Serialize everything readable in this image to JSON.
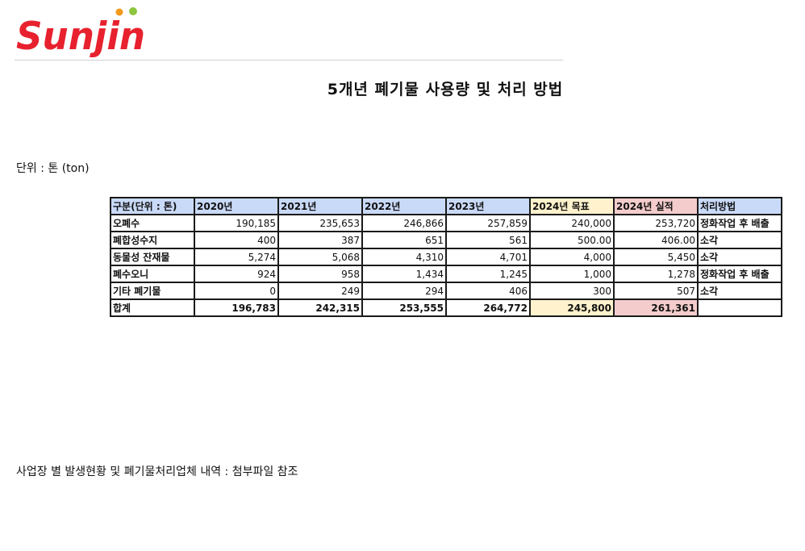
{
  "brand": {
    "logo_text": "Sunjin",
    "primary_color": "#e8212e",
    "dot_orange": "#f39a1d",
    "dot_green": "#8cc63f"
  },
  "title": "5개년 폐기물 사용량 및 처리 방법",
  "unit_note": "단위 : 톤 (ton)",
  "table": {
    "headers": [
      "구분(단위 : 톤)",
      "2020년",
      "2021년",
      "2022년",
      "2023년",
      "2024년 목표",
      "2024년 실적",
      "처리방법"
    ],
    "rows": [
      {
        "cells": [
          "오폐수",
          "190,185",
          "235,653",
          "246,866",
          "257,859",
          "240,000",
          "253,720",
          "정화작업 후 배출"
        ]
      },
      {
        "cells": [
          "폐합성수지",
          "400",
          "387",
          "651",
          "561",
          "500.00",
          "406.00",
          "소각"
        ]
      },
      {
        "cells": [
          "동물성 잔재물",
          "5,274",
          "5,068",
          "4,310",
          "4,701",
          "4,000",
          "5,450",
          "소각"
        ]
      },
      {
        "cells": [
          "폐수오니",
          "924",
          "958",
          "1,434",
          "1,245",
          "1,000",
          "1,278",
          "정화작업 후 배출"
        ]
      },
      {
        "cells": [
          "기타 폐기물",
          "0",
          "249",
          "294",
          "406",
          "300",
          "507",
          "소각"
        ]
      },
      {
        "cells": [
          "합계",
          "196,783",
          "242,315",
          "253,555",
          "264,772",
          "245,800",
          "261,361",
          ""
        ]
      }
    ],
    "colors": {
      "header": "#c9daf8",
      "target": "#fff2cc",
      "actual": "#f4cccc"
    }
  },
  "footer_note": "사업장 별 발생현황 및 폐기물처리업체 내역 : 첨부파일 참조"
}
